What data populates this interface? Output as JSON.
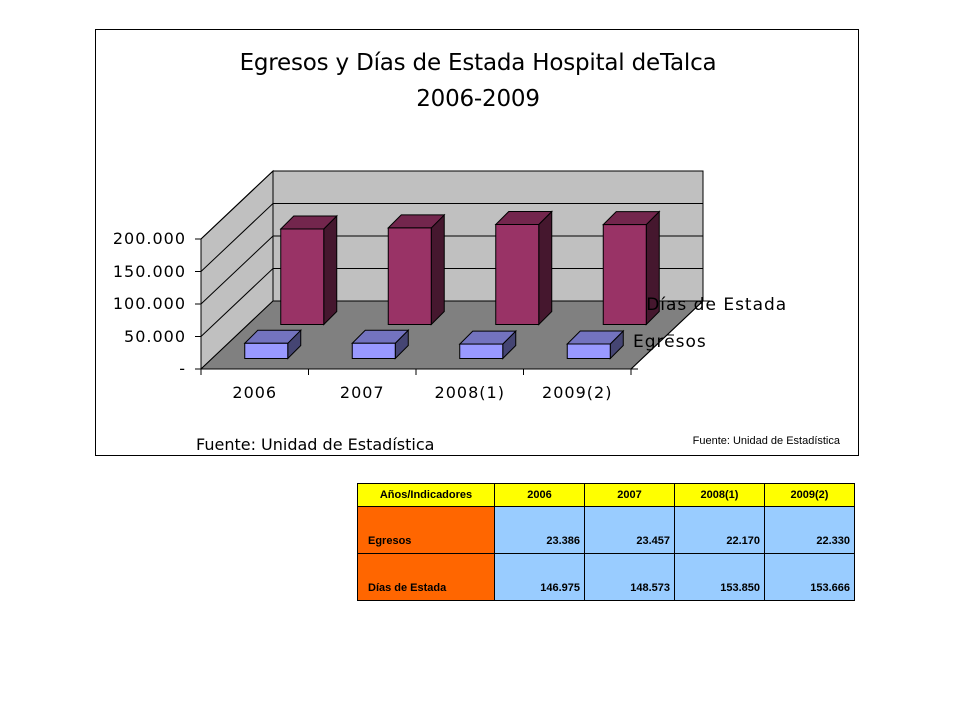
{
  "chart_data": {
    "type": "bar",
    "style": "3d-clustered-depth",
    "title": "Egresos y Días de Estada  Hospital deTalca",
    "subtitle": "2006-2009",
    "categories": [
      "2006",
      "2007",
      "2008(1)",
      "2009(2)"
    ],
    "series": [
      {
        "name": "Días de Estada",
        "values": [
          146975,
          148573,
          153850,
          153666
        ],
        "color": "#993366"
      },
      {
        "name": "Egresos",
        "values": [
          23386,
          23457,
          22170,
          22330
        ],
        "color": "#9999ff"
      }
    ],
    "ylim": [
      0,
      200000
    ],
    "yticks": [
      0,
      50000,
      100000,
      150000,
      200000
    ],
    "ytick_labels": [
      "-",
      "50.000",
      "100.000",
      "150.000",
      "200.000"
    ],
    "grid": true,
    "wall_color": "#c0c0c0",
    "floor_color": "#808080",
    "source_main": "Fuente: Unidad de Estadística",
    "source_small": "Fuente: Unidad de Estadística"
  },
  "table": {
    "header": [
      "Años/Indicadores",
      "2006",
      "2007",
      "2008(1)",
      "2009(2)"
    ],
    "rows": [
      {
        "label": "Egresos",
        "values": [
          "23.386",
          "23.457",
          "22.170",
          "22.330"
        ]
      },
      {
        "label": "Días de Estada",
        "values": [
          "146.975",
          "148.573",
          "153.850",
          "153.666"
        ]
      }
    ],
    "colors": {
      "header": "#ffff00",
      "row_label": "#ff6600",
      "cell": "#99ccff"
    }
  }
}
